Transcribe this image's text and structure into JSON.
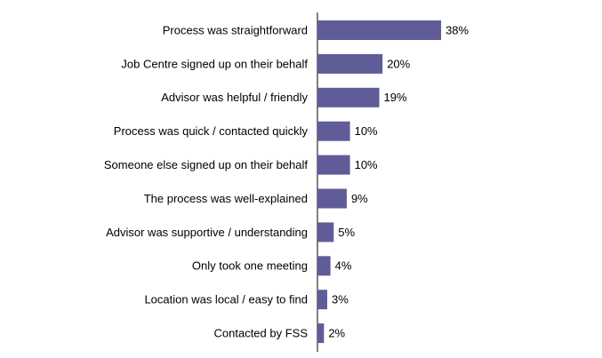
{
  "chart_data": {
    "type": "bar",
    "orientation": "horizontal",
    "categories": [
      "Process was straightforward",
      "Job Centre signed up on their behalf",
      "Advisor was helpful / friendly",
      "Process was quick / contacted quickly",
      "Someone else signed up on their behalf",
      "The process was well-explained",
      "Advisor was supportive / understanding",
      "Only took one meeting",
      "Location was local / easy to find",
      "Contacted by FSS"
    ],
    "values": [
      38,
      20,
      19,
      10,
      10,
      9,
      5,
      4,
      3,
      2
    ],
    "value_labels": [
      "38%",
      "20%",
      "19%",
      "10%",
      "10%",
      "9%",
      "5%",
      "4%",
      "3%",
      "2%"
    ],
    "color": "#605c98"
  }
}
